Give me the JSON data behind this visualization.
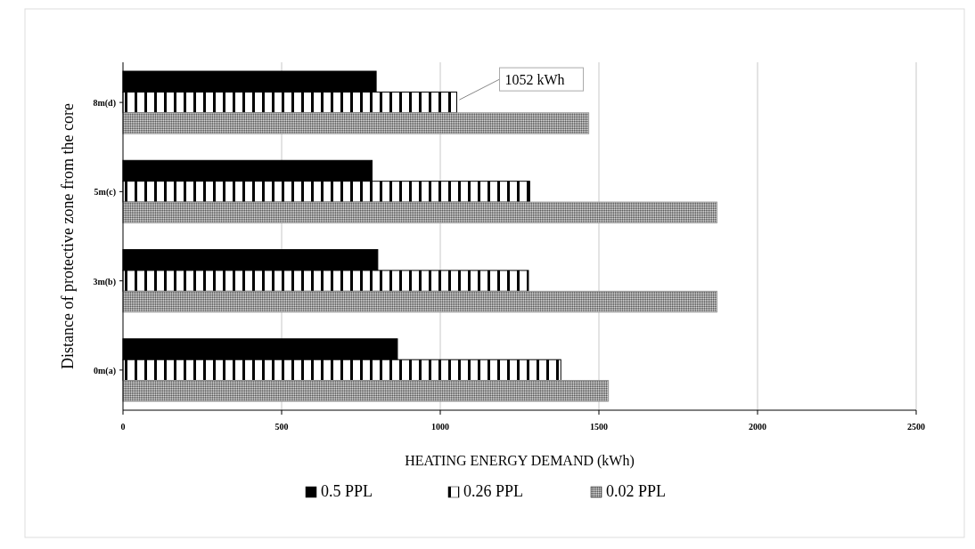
{
  "chart_data": {
    "type": "bar",
    "orientation": "horizontal",
    "xlabel": "HEATING ENERGY DEMAND (kWh)",
    "ylabel": "Distance of protective zone from the core",
    "categories": [
      "8m(d)",
      "5m(c)",
      "3m(b)",
      "0m(a)"
    ],
    "series": [
      {
        "name": "0.5 PPL",
        "color": "#000000",
        "values": [
          798,
          785,
          803,
          865
        ]
      },
      {
        "name": "0.26 PPL",
        "color": "#000000",
        "values": [
          1052,
          1282,
          1278,
          1380
        ]
      },
      {
        "name": "0.02 PPL",
        "color": "#999999",
        "values": [
          1468,
          1872,
          1872,
          1530
        ]
      }
    ],
    "xlim": [
      0,
      2500
    ],
    "xticks": [
      0,
      500,
      1000,
      1500,
      2000,
      2500
    ],
    "grid": "x",
    "legend": "bottom",
    "annotations": [
      {
        "text": "1052 kWh",
        "x": 1052,
        "y": "8m(d)"
      }
    ]
  }
}
